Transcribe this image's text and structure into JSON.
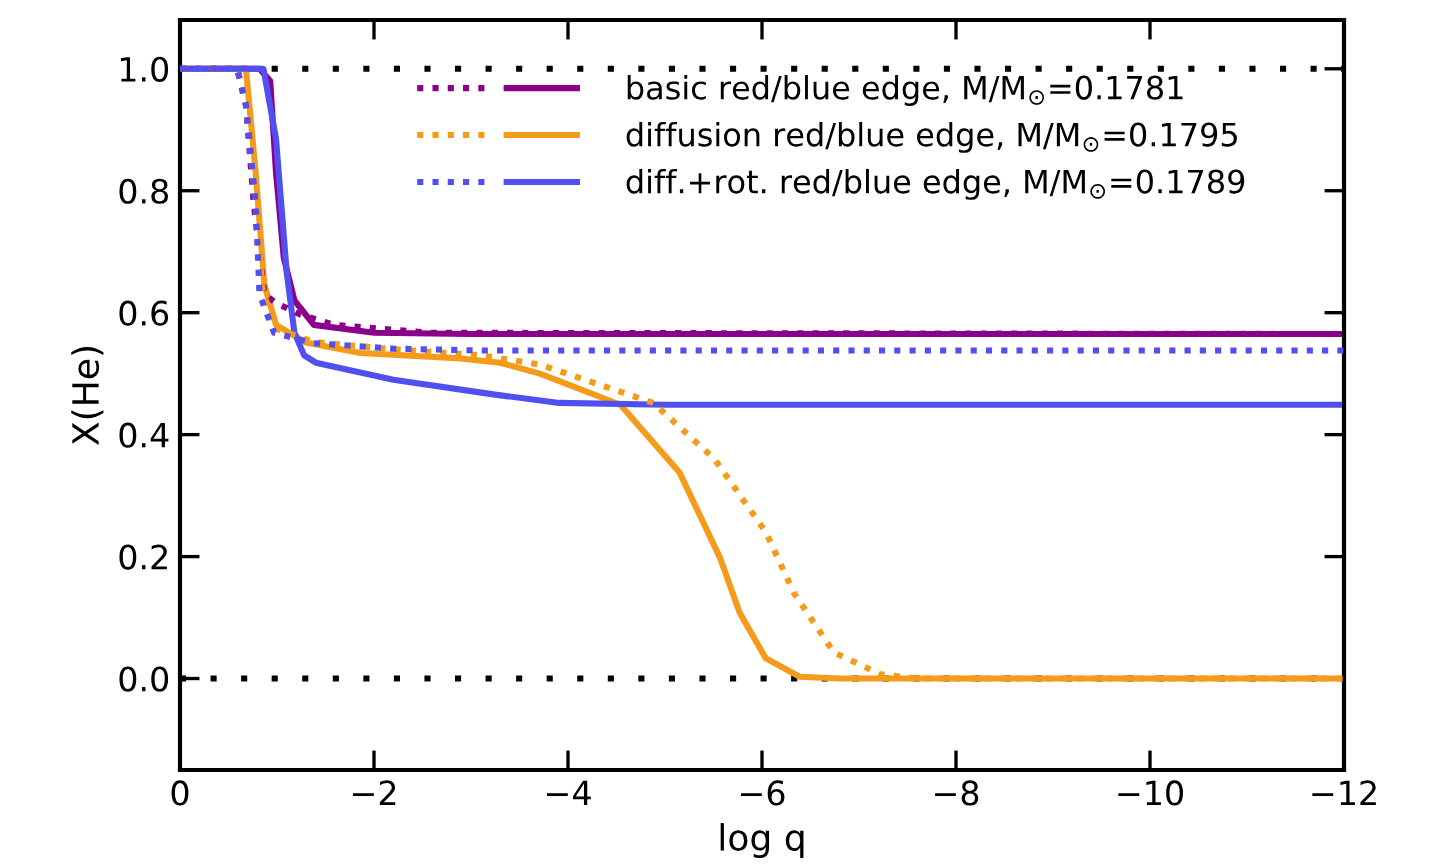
{
  "chart_data": {
    "type": "line",
    "xlabel": "log q",
    "ylabel": "X(He)",
    "xlim": [
      0,
      -12
    ],
    "xticks": [
      0,
      {
        "value": -2,
        "label": "−2"
      },
      {
        "value": -4,
        "label": "−4"
      },
      {
        "value": -6,
        "label": "−6"
      },
      {
        "value": -8,
        "label": "−8"
      },
      {
        "value": -10,
        "label": "−10"
      },
      {
        "value": -12,
        "label": "−12"
      }
    ],
    "ylim": [
      -0.15,
      1.08
    ],
    "yticks": [
      {
        "value": 0,
        "label": "0.0"
      },
      0.2,
      0.4,
      0.6,
      0.8,
      {
        "value": 1,
        "label": "1.0"
      }
    ],
    "grid": false,
    "legend": "top",
    "marker": "none",
    "series": [
      {
        "color": "#8b008b",
        "line_style": "dotted",
        "x": [
          0,
          -0.59,
          -0.68,
          -0.76,
          -0.87,
          -0.99,
          -1.24,
          -1.59,
          -2.6,
          -12
        ],
        "values": [
          1,
          1,
          0.94,
          0.78,
          0.63,
          0.616,
          0.597,
          0.58,
          0.567,
          0.565
        ]
      },
      {
        "name": "basic red/blue edge, M/M$_{⊙}$=0.1781",
        "color": "#8b008b",
        "line_style": "solid",
        "x": [
          0,
          -0.82,
          -0.93,
          -0.99,
          -1.07,
          -1.18,
          -1.38,
          -2.0,
          -3,
          -12
        ],
        "values": [
          1,
          1,
          0.98,
          0.83,
          0.69,
          0.62,
          0.58,
          0.567,
          0.565,
          0.565
        ]
      },
      {
        "color": "#f59b1c",
        "line_style": "dotted",
        "x": [
          0,
          -0.59,
          -0.68,
          -0.78,
          -0.85,
          -0.97,
          -1.38,
          -2.2,
          -3.1,
          -3.71,
          -4.88,
          -5.51,
          -6.04,
          -6.33,
          -6.74,
          -7.22,
          -7.6,
          -12
        ],
        "values": [
          1,
          1,
          0.94,
          0.78,
          0.64,
          0.575,
          0.552,
          0.54,
          0.53,
          0.515,
          0.452,
          0.36,
          0.24,
          0.14,
          0.043,
          0.007,
          0,
          0
        ]
      },
      {
        "name": "diffusion red/blue edge, M/M$_{⊙}$=0.1795",
        "color": "#f59b1c",
        "line_style": "solid",
        "x": [
          0,
          -0.68,
          -0.78,
          -0.87,
          -0.99,
          -1.3,
          -1.86,
          -2.89,
          -3.3,
          -3.71,
          -4.54,
          -5.15,
          -5.57,
          -5.77,
          -6.04,
          -6.39,
          -6.8,
          -12
        ],
        "values": [
          1,
          1,
          0.83,
          0.646,
          0.58,
          0.551,
          0.534,
          0.525,
          0.518,
          0.5,
          0.449,
          0.338,
          0.197,
          0.108,
          0.033,
          0.003,
          0,
          0
        ]
      },
      {
        "color": "#5050f0",
        "line_style": "dotted",
        "x": [
          0,
          -0.59,
          -0.68,
          -0.78,
          -0.82,
          -0.97,
          -1.38,
          -2.2,
          -3.1,
          -12
        ],
        "values": [
          1,
          1,
          0.94,
          0.78,
          0.63,
          0.567,
          0.55,
          0.541,
          0.538,
          0.538
        ]
      },
      {
        "name": "diff.+rot. red/blue edge, M/M$_{⊙}$=0.1789",
        "color": "#5050f0",
        "line_style": "solid",
        "x": [
          0,
          -0.86,
          -0.99,
          -1.1,
          -1.18,
          -1.28,
          -1.4,
          -2.2,
          -3.23,
          -3.91,
          -5,
          -12
        ],
        "values": [
          1,
          1,
          0.885,
          0.666,
          0.567,
          0.53,
          0.518,
          0.49,
          0.466,
          0.452,
          0.449,
          0.449
        ]
      }
    ],
    "ref_lines": [
      {
        "axis": "y",
        "value": 1,
        "color": "#000000",
        "line_style": "dotted"
      },
      {
        "axis": "y",
        "value": 0,
        "color": "#000000",
        "line_style": "dotted"
      }
    ]
  }
}
